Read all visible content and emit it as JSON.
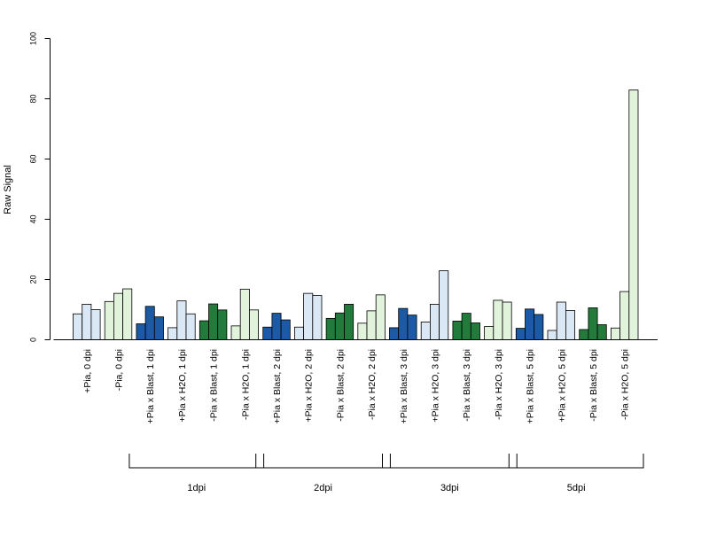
{
  "chart_data": {
    "type": "bar",
    "title": "",
    "xlabel": "",
    "ylabel": "Raw Signal",
    "ylim": [
      0,
      100
    ],
    "yticks": [
      "0",
      "20",
      "40",
      "60",
      "80",
      "100"
    ],
    "grid": false,
    "categories": [
      "+Pia, 0 dpi",
      "-Pia, 0 dpi",
      "+Pia x Blast, 1 dpi",
      "+Pia x H2O, 1 dpi",
      "-Pia x Blast, 1 dpi",
      "-Pia x H2O, 1 dpi",
      "+Pia x Blast, 2 dpi",
      "+Pia x H2O, 2 dpi",
      "-Pia x Blast, 2 dpi",
      "-Pia x H2O, 2 dpi",
      "+Pia x Blast, 3 dpi",
      "+Pia x H2O, 3 dpi",
      "-Pia x Blast, 3 dpi",
      "-Pia x H2O, 3 dpi",
      "+Pia x Blast, 5 dpi",
      "+Pia x H2O, 5 dpi",
      "-Pia x Blast, 5 dpi",
      "-Pia x H2O, 5 dpi"
    ],
    "replicates": [
      [
        8.6,
        11.8,
        10.0
      ],
      [
        12.7,
        15.4,
        16.9
      ],
      [
        5.3,
        11.1,
        7.6
      ],
      [
        4.0,
        12.9,
        8.6
      ],
      [
        6.3,
        11.9,
        9.9
      ],
      [
        4.6,
        16.8,
        9.9
      ],
      [
        4.2,
        8.8,
        6.6
      ],
      [
        4.2,
        15.4,
        14.7
      ],
      [
        7.1,
        8.9,
        11.8
      ],
      [
        5.5,
        9.6,
        14.9
      ],
      [
        4.0,
        10.4,
        8.2
      ],
      [
        5.9,
        11.8,
        22.9
      ],
      [
        6.2,
        8.8,
        5.6
      ],
      [
        4.4,
        13.1,
        12.5
      ],
      [
        3.8,
        10.2,
        8.4
      ],
      [
        3.1,
        12.5,
        9.7
      ],
      [
        3.4,
        10.6,
        5.0
      ],
      [
        3.9,
        16.0,
        82.9
      ]
    ],
    "bar_colors": [
      "#dae8f5",
      "#e1f3db",
      "#1c5aa6",
      "#dae8f5",
      "#237b3b",
      "#e1f3db",
      "#1c5aa6",
      "#dae8f5",
      "#237b3b",
      "#e1f3db",
      "#1c5aa6",
      "#dae8f5",
      "#237b3b",
      "#e1f3db",
      "#1c5aa6",
      "#dae8f5",
      "#237b3b",
      "#e1f3db"
    ],
    "groups": [
      {
        "label": "1dpi",
        "first": 2,
        "last": 5
      },
      {
        "label": "2dpi",
        "first": 6,
        "last": 9
      },
      {
        "label": "3dpi",
        "first": 10,
        "last": 13
      },
      {
        "label": "5dpi",
        "first": 14,
        "last": 17
      }
    ]
  }
}
